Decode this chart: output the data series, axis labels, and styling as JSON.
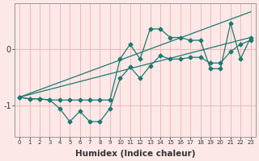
{
  "xlabel": "Humidex (Indice chaleur)",
  "background_color": "#fde8e8",
  "grid_color": "#f0b8b8",
  "line_color": "#1a7a6e",
  "xlim": [
    -0.5,
    23.5
  ],
  "ylim": [
    -1.55,
    0.8
  ],
  "yticks": [
    -1,
    0
  ],
  "xticks": [
    0,
    1,
    2,
    3,
    4,
    5,
    6,
    7,
    8,
    9,
    10,
    11,
    12,
    13,
    14,
    15,
    16,
    17,
    18,
    19,
    20,
    21,
    22,
    23
  ],
  "line1_x": [
    0,
    1,
    2,
    3,
    4,
    5,
    6,
    7,
    8,
    9,
    10,
    11,
    12,
    13,
    14,
    15,
    16,
    17,
    18,
    19,
    20,
    21,
    22,
    23
  ],
  "line1_y": [
    -0.85,
    -0.88,
    -0.88,
    -0.9,
    -1.05,
    -1.28,
    -1.1,
    -1.28,
    -1.28,
    -1.05,
    -0.52,
    -0.32,
    -0.52,
    -0.3,
    -0.12,
    -0.18,
    -0.18,
    -0.15,
    -0.15,
    -0.25,
    -0.25,
    -0.05,
    0.08,
    0.15
  ],
  "line2_x": [
    0,
    1,
    2,
    3,
    4,
    5,
    6,
    7,
    8,
    9,
    10,
    11,
    12,
    13,
    14,
    15,
    16,
    17,
    18,
    19,
    20,
    21,
    22,
    23
  ],
  "line2_y": [
    -0.85,
    -0.88,
    -0.88,
    -0.9,
    -0.9,
    -0.9,
    -0.9,
    -0.9,
    -0.9,
    -0.9,
    -0.18,
    0.08,
    -0.18,
    0.35,
    0.35,
    0.2,
    0.2,
    0.15,
    0.15,
    -0.35,
    -0.35,
    0.45,
    -0.18,
    0.2
  ],
  "line3_x": [
    0,
    23
  ],
  "line3_y": [
    -0.85,
    0.65
  ],
  "line4_x": [
    0,
    23
  ],
  "line4_y": [
    -0.85,
    0.2
  ],
  "marker": "D",
  "markersize": 2.5,
  "linewidth": 0.9
}
